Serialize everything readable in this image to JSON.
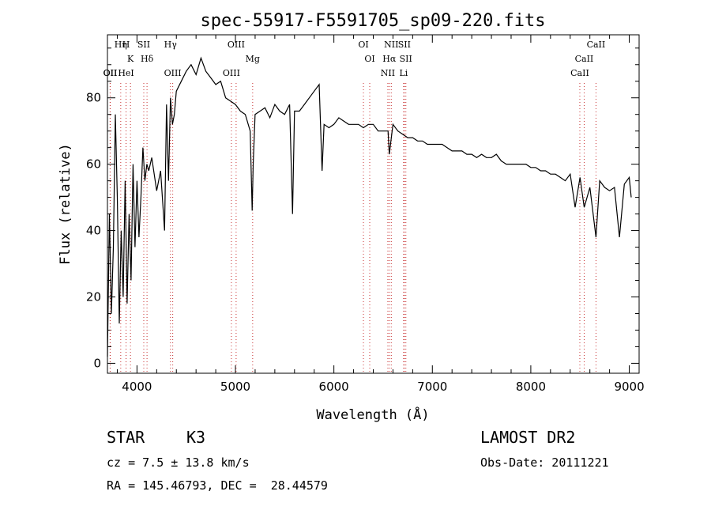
{
  "chart_data": {
    "type": "line",
    "title": "spec-55917-F5591705_sp09-220.fits",
    "xlabel": "Wavelength (Å)",
    "ylabel": "Flux (relative)",
    "xlim": [
      3700,
      9100
    ],
    "ylim": [
      -3,
      99
    ],
    "xticks": [
      4000,
      5000,
      6000,
      7000,
      8000,
      9000
    ],
    "yticks": [
      0,
      20,
      40,
      60,
      80
    ],
    "grid": false,
    "series": [
      {
        "x": [
          3700,
          3720,
          3740,
          3760,
          3780,
          3800,
          3820,
          3840,
          3860,
          3880,
          3900,
          3920,
          3940,
          3960,
          3980,
          4000,
          4020,
          4040,
          4060,
          4080,
          4100,
          4120,
          4150,
          4200,
          4240,
          4280,
          4300,
          4320,
          4340,
          4360,
          4380,
          4400,
          4450,
          4500,
          4550,
          4600,
          4650,
          4700,
          4750,
          4800,
          4850,
          4900,
          4950,
          5000,
          5050,
          5100,
          5150,
          5170,
          5180,
          5200,
          5250,
          5300,
          5350,
          5400,
          5450,
          5500,
          5550,
          5580,
          5600,
          5650,
          5700,
          5750,
          5800,
          5850,
          5880,
          5900,
          5950,
          6000,
          6050,
          6100,
          6150,
          6200,
          6250,
          6300,
          6350,
          6400,
          6450,
          6500,
          6550,
          6563,
          6600,
          6650,
          6700,
          6750,
          6800,
          6850,
          6900,
          6950,
          7000,
          7050,
          7100,
          7150,
          7200,
          7250,
          7300,
          7350,
          7400,
          7450,
          7500,
          7550,
          7600,
          7650,
          7700,
          7750,
          7800,
          7850,
          7900,
          7950,
          8000,
          8050,
          8100,
          8150,
          8200,
          8250,
          8300,
          8350,
          8400,
          8450,
          8500,
          8542,
          8600,
          8662,
          8700,
          8750,
          8800,
          8850,
          8900,
          8950,
          9000,
          9020
        ],
        "values": [
          2,
          45,
          15,
          35,
          75,
          50,
          12,
          40,
          20,
          55,
          18,
          45,
          25,
          60,
          35,
          55,
          38,
          50,
          65,
          55,
          60,
          58,
          62,
          52,
          58,
          40,
          78,
          55,
          80,
          72,
          75,
          82,
          85,
          88,
          90,
          87,
          92,
          88,
          86,
          84,
          85,
          80,
          79,
          78,
          76,
          75,
          70,
          46,
          60,
          75,
          76,
          77,
          74,
          78,
          76,
          75,
          78,
          45,
          76,
          76,
          78,
          80,
          82,
          84,
          58,
          72,
          71,
          72,
          74,
          73,
          72,
          72,
          72,
          71,
          72,
          72,
          70,
          70,
          70,
          63,
          72,
          70,
          69,
          68,
          68,
          67,
          67,
          66,
          66,
          66,
          66,
          65,
          64,
          64,
          64,
          63,
          63,
          62,
          63,
          62,
          62,
          63,
          61,
          60,
          60,
          60,
          60,
          60,
          59,
          59,
          58,
          58,
          57,
          57,
          56,
          55,
          57,
          47,
          56,
          47,
          53,
          38,
          55,
          53,
          52,
          53,
          38,
          54,
          56,
          50
        ]
      }
    ],
    "lines": [
      {
        "label": "Hη",
        "wavelength": 3835
      },
      {
        "label": "H",
        "wavelength": 3889
      },
      {
        "label": "K",
        "wavelength": 3934
      },
      {
        "label": "Hδ",
        "wavelength": 4102
      },
      {
        "label": "OII",
        "wavelength": 3727
      },
      {
        "label": "OII",
        "wavelength": 3729
      },
      {
        "label": "HeI",
        "wavelength": 3889
      },
      {
        "label": "SII",
        "wavelength": 4069
      },
      {
        "label": "Hγ",
        "wavelength": 4340
      },
      {
        "label": "OIII",
        "wavelength": 4363
      },
      {
        "label": "OIII",
        "wavelength": 5007
      },
      {
        "label": "OIII",
        "wavelength": 4959
      },
      {
        "label": "Mg",
        "wavelength": 5175
      },
      {
        "label": "OI",
        "wavelength": 6300
      },
      {
        "label": "OI",
        "wavelength": 6364
      },
      {
        "label": "NII",
        "wavelength": 6583
      },
      {
        "label": "SII",
        "wavelength": 6716
      },
      {
        "label": "Hα",
        "wavelength": 6563
      },
      {
        "label": "SII",
        "wavelength": 6731
      },
      {
        "label": "NII",
        "wavelength": 6548
      },
      {
        "label": "Li",
        "wavelength": 6708
      },
      {
        "label": "CaII",
        "wavelength": 8662
      },
      {
        "label": "CaII",
        "wavelength": 8542
      },
      {
        "label": "CaII",
        "wavelength": 8498
      }
    ]
  },
  "info": {
    "object_type": "STAR",
    "subclass": "K3",
    "survey": "LAMOST DR2",
    "redshift": "cz = 7.5 ± 13.8 km/s",
    "obs_date": "Obs-Date: 20111221",
    "coords": "RA = 145.46793, DEC =  28.44579"
  }
}
